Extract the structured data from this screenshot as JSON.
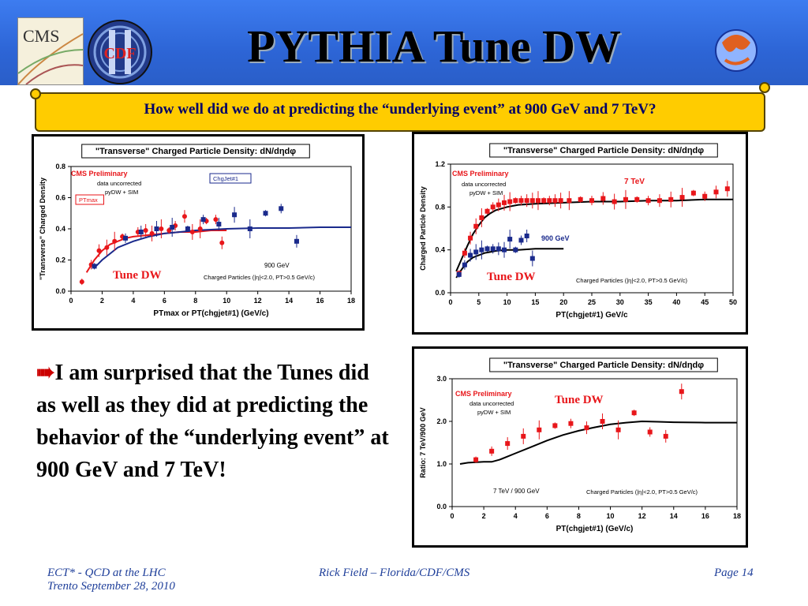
{
  "header": {
    "title": "PYTHIA Tune DW",
    "subtitle": "How well did we do at predicting the “underlying event” at 900 GeV and 7 TeV?",
    "logos": {
      "left1": "CMS",
      "left2": "CDF"
    }
  },
  "bullet": {
    "icon": "arrow-right-icon",
    "text": "I am surprised that the Tunes did as well as they did at predicting the behavior of the “underlying event” at 900 GeV and 7 TeV!"
  },
  "footer": {
    "left_line1": "ECT* - QCD at the LHC",
    "left_line2": "Trento  September 28, 2010",
    "center": "Rick Field – Florida/CDF/CMS",
    "right": "Page 14"
  },
  "colors": {
    "red": "#e8161a",
    "blue": "#1a2a8c",
    "black": "#000000",
    "banner": "#2f6fe0",
    "subtitle_bg": "#ffcc00"
  },
  "chart_data": [
    {
      "type": "scatter",
      "title": "\"Transverse\" Charged Particle Density: dN/dηdφ",
      "xlabel": "PTmax or PT(chgjet#1)  (GeV/c)",
      "ylabel": "\"Transverse\" Charged Density",
      "xlim": [
        0,
        18
      ],
      "ylim": [
        0,
        0.8
      ],
      "xticks": [
        "0",
        "2",
        "4",
        "6",
        "8",
        "10",
        "12",
        "14",
        "16",
        "18"
      ],
      "yticks": [
        "0.0",
        "0.2",
        "0.4",
        "0.6",
        "0.8"
      ],
      "annotations": [
        "CMS Preliminary",
        "data uncorrected",
        "pyDW + SIM",
        "900 GeV",
        "Charged Particles (|η|<2.0, PT>0.5 GeV/c)",
        "Tune DW"
      ],
      "legend_boxes": [
        "PTmax",
        "ChgJet#1"
      ],
      "series": [
        {
          "name": "PTmax",
          "color": "red",
          "marker": "circle",
          "x": [
            0.7,
            1.3,
            1.8,
            2.3,
            2.8,
            3.3,
            4.3,
            4.8,
            5.2,
            5.8,
            6.3,
            6.7,
            7.3,
            7.8,
            8.3,
            8.7,
            9.3,
            9.7
          ],
          "y": [
            0.06,
            0.17,
            0.26,
            0.28,
            0.32,
            0.35,
            0.38,
            0.39,
            0.37,
            0.4,
            0.39,
            0.42,
            0.48,
            0.38,
            0.4,
            0.45,
            0.46,
            0.31
          ]
        },
        {
          "name": "ChgJet#1",
          "color": "blue",
          "marker": "square",
          "x": [
            1.5,
            3.5,
            4.5,
            5.5,
            6.5,
            7.5,
            8.5,
            9.5,
            10.5,
            11.5,
            12.5,
            13.5,
            14.5
          ],
          "y": [
            0.16,
            0.34,
            0.38,
            0.4,
            0.41,
            0.4,
            0.46,
            0.43,
            0.49,
            0.4,
            0.5,
            0.53,
            0.32
          ]
        }
      ],
      "curves": [
        {
          "name": "PTmax Tune DW",
          "color": "red",
          "x": [
            1,
            1.5,
            2,
            2.5,
            3,
            3.5,
            4,
            5,
            6,
            7,
            8,
            9,
            10
          ],
          "y": [
            0.12,
            0.2,
            0.26,
            0.3,
            0.32,
            0.34,
            0.35,
            0.36,
            0.37,
            0.38,
            0.38,
            0.39,
            0.39
          ]
        },
        {
          "name": "ChgJet#1 Tune DW",
          "color": "blue",
          "x": [
            1.5,
            2,
            3,
            4,
            5,
            6,
            7,
            8,
            9,
            10,
            12,
            14,
            16,
            18
          ],
          "y": [
            0.15,
            0.2,
            0.28,
            0.32,
            0.35,
            0.37,
            0.38,
            0.39,
            0.395,
            0.4,
            0.405,
            0.405,
            0.41,
            0.41
          ]
        }
      ]
    },
    {
      "type": "scatter",
      "title": "\"Transverse\" Charged Particle Density: dN/dηdφ",
      "xlabel": "PT(chgjet#1) GeV/c",
      "ylabel": "Charged Particle Density",
      "xlim": [
        0,
        50
      ],
      "ylim": [
        0,
        1.2
      ],
      "xticks": [
        "0",
        "5",
        "10",
        "15",
        "20",
        "25",
        "30",
        "35",
        "40",
        "45",
        "50"
      ],
      "yticks": [
        "0.0",
        "0.4",
        "0.8",
        "1.2"
      ],
      "annotations": [
        "CMS Preliminary",
        "data uncorrected",
        "pyDW + SIM",
        "7 TeV",
        "900 GeV",
        "Tune DW",
        "Charged Particles (|η|<2.0, PT>0.5 GeV/c)"
      ],
      "series": [
        {
          "name": "7 TeV",
          "color": "red",
          "marker": "square",
          "x": [
            1.5,
            2.5,
            3.5,
            4.5,
            5.5,
            6.5,
            7.5,
            8.5,
            9.5,
            10.5,
            11.5,
            12.5,
            13.5,
            14.5,
            15.5,
            16.5,
            17.5,
            18.5,
            19.5,
            21,
            23,
            25,
            27,
            29,
            31,
            33,
            35,
            37,
            39,
            41,
            43,
            45,
            47,
            49
          ],
          "y": [
            0.18,
            0.37,
            0.51,
            0.62,
            0.7,
            0.76,
            0.8,
            0.82,
            0.84,
            0.85,
            0.86,
            0.86,
            0.86,
            0.86,
            0.86,
            0.86,
            0.86,
            0.86,
            0.86,
            0.86,
            0.87,
            0.86,
            0.88,
            0.85,
            0.87,
            0.87,
            0.86,
            0.86,
            0.87,
            0.89,
            0.93,
            0.9,
            0.94,
            0.97
          ]
        },
        {
          "name": "900 GeV",
          "color": "blue",
          "marker": "square",
          "x": [
            1.5,
            2.5,
            3.5,
            4.5,
            5.5,
            6.5,
            7.5,
            8.5,
            9.5,
            10.5,
            11.5,
            12.5,
            13.5,
            14.5
          ],
          "y": [
            0.17,
            0.26,
            0.35,
            0.38,
            0.4,
            0.41,
            0.41,
            0.41,
            0.4,
            0.5,
            0.4,
            0.49,
            0.53,
            0.32
          ]
        }
      ],
      "curves": [
        {
          "name": "7 TeV Tune DW",
          "color": "black",
          "x": [
            1,
            2,
            3,
            4,
            5,
            6,
            7,
            8,
            10,
            12,
            15,
            20,
            25,
            30,
            35,
            40,
            45,
            50
          ],
          "y": [
            0.2,
            0.32,
            0.44,
            0.55,
            0.63,
            0.7,
            0.74,
            0.77,
            0.8,
            0.82,
            0.83,
            0.84,
            0.85,
            0.85,
            0.86,
            0.86,
            0.87,
            0.87
          ]
        },
        {
          "name": "900 GeV Tune DW",
          "color": "black",
          "x": [
            1,
            2,
            3,
            4,
            5,
            6,
            7,
            8,
            10,
            12,
            15,
            20
          ],
          "y": [
            0.14,
            0.22,
            0.29,
            0.33,
            0.35,
            0.37,
            0.38,
            0.39,
            0.4,
            0.4,
            0.41,
            0.41
          ]
        }
      ]
    },
    {
      "type": "scatter",
      "title": "\"Transverse\" Charged Particle Density: dN/dηdφ",
      "xlabel": "PT(chgjet#1)  (GeV/c)",
      "ylabel": "Ratio: 7 TeV/900 GeV",
      "xlim": [
        0,
        18
      ],
      "ylim": [
        0,
        3.0
      ],
      "xticks": [
        "0",
        "2",
        "4",
        "6",
        "8",
        "10",
        "12",
        "14",
        "16",
        "18"
      ],
      "yticks": [
        "0.0",
        "1.0",
        "2.0",
        "3.0"
      ],
      "annotations": [
        "CMS Preliminary",
        "data uncorrected",
        "pyDW + SIM",
        "Tune DW",
        "7 TeV / 900 GeV",
        "Charged Particles (|η|<2.0, PT>0.5 GeV/c)"
      ],
      "series": [
        {
          "name": "Ratio",
          "color": "red",
          "marker": "square",
          "x": [
            1.5,
            2.5,
            3.5,
            4.5,
            5.5,
            6.5,
            7.5,
            8.5,
            9.5,
            10.5,
            11.5,
            12.5,
            13.5,
            14.5
          ],
          "y": [
            1.1,
            1.3,
            1.48,
            1.65,
            1.8,
            1.9,
            1.95,
            1.85,
            2.0,
            1.8,
            2.2,
            1.75,
            1.65,
            2.7
          ]
        }
      ],
      "curves": [
        {
          "name": "Tune DW ratio",
          "color": "black",
          "x": [
            0.5,
            1,
            2,
            2.5,
            3,
            4,
            5,
            6,
            7,
            8,
            9,
            10,
            11,
            12,
            13,
            14,
            16,
            18
          ],
          "y": [
            1.0,
            1.03,
            1.05,
            1.05,
            1.1,
            1.25,
            1.4,
            1.55,
            1.68,
            1.78,
            1.86,
            1.93,
            1.97,
            2.0,
            1.99,
            1.98,
            1.97,
            1.97
          ]
        }
      ]
    }
  ]
}
